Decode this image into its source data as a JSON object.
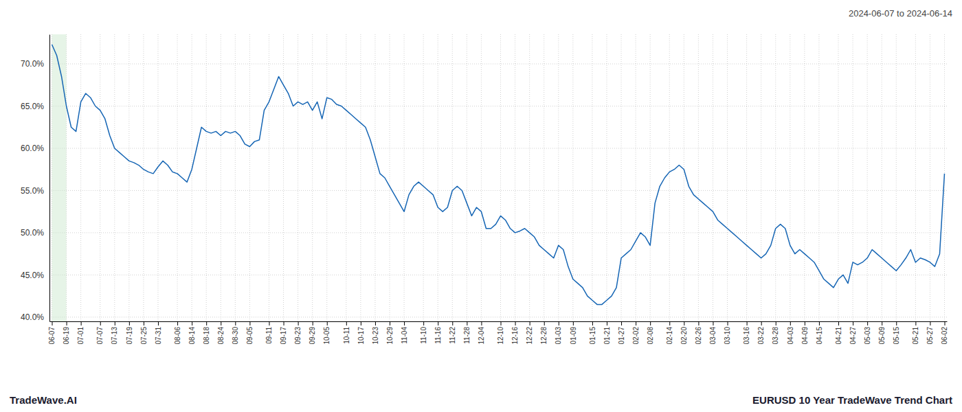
{
  "chart_data": {
    "type": "line",
    "title": "EURUSD 10 Year TradeWave Trend Chart",
    "subtitle": "2024-06-07 to 2024-06-14",
    "annotations": [
      "TradeWave.AI"
    ],
    "color": "#1565b4",
    "grid": true,
    "highlight": {
      "from": "06-07",
      "to": "06-19",
      "color": "#c8e6c9"
    },
    "ylim": [
      39.5,
      73.5
    ],
    "yticks": [
      {
        "value": 40.0,
        "label": "40.0%"
      },
      {
        "value": 45.0,
        "label": "45.0%"
      },
      {
        "value": 50.0,
        "label": "50.0%"
      },
      {
        "value": 55.0,
        "label": "55.0%"
      },
      {
        "value": 60.0,
        "label": "60.0%"
      },
      {
        "value": 65.0,
        "label": "65.0%"
      },
      {
        "value": 70.0,
        "label": "70.0%"
      }
    ],
    "categories": [
      "06-07",
      null,
      null,
      "06-19",
      null,
      null,
      "07-01",
      null,
      null,
      null,
      "07-07",
      null,
      null,
      "07-13",
      null,
      null,
      "07-19",
      null,
      null,
      "07-25",
      null,
      null,
      "07-31",
      null,
      null,
      null,
      "08-06",
      null,
      null,
      "08-14",
      null,
      null,
      "08-18",
      null,
      null,
      "08-24",
      null,
      null,
      "08-30",
      null,
      null,
      "09-05",
      null,
      null,
      null,
      "09-11",
      null,
      null,
      "09-17",
      null,
      null,
      "09-23",
      null,
      null,
      "09-29",
      null,
      null,
      "10-05",
      null,
      null,
      null,
      "10-11",
      null,
      null,
      "10-17",
      null,
      null,
      "10-23",
      null,
      null,
      "10-29",
      null,
      null,
      "11-04",
      null,
      null,
      null,
      "11-10",
      null,
      null,
      "11-16",
      null,
      null,
      "11-22",
      null,
      null,
      "11-28",
      null,
      null,
      "12-04",
      null,
      null,
      null,
      "12-10",
      null,
      null,
      "12-16",
      null,
      null,
      "12-22",
      null,
      null,
      "12-28",
      null,
      null,
      "01-03",
      null,
      null,
      "01-09",
      null,
      null,
      null,
      "01-15",
      null,
      null,
      "01-21",
      null,
      null,
      "01-27",
      null,
      null,
      "02-02",
      null,
      null,
      "02-08",
      null,
      null,
      null,
      "02-14",
      null,
      null,
      "02-20",
      null,
      null,
      "02-26",
      null,
      null,
      "03-04",
      null,
      null,
      "03-10",
      null,
      null,
      null,
      "03-16",
      null,
      null,
      "03-22",
      null,
      null,
      "03-28",
      null,
      null,
      "04-03",
      null,
      null,
      "04-09",
      null,
      null,
      "04-15",
      null,
      null,
      null,
      "04-21",
      null,
      null,
      "04-27",
      null,
      null,
      "05-03",
      null,
      null,
      "05-09",
      null,
      null,
      "05-15",
      null,
      null,
      null,
      "05-21",
      null,
      null,
      "05-27",
      null,
      null,
      "06-02"
    ],
    "values": [
      72.3,
      71.0,
      68.5,
      65.0,
      62.5,
      62.0,
      65.5,
      66.5,
      66.0,
      65.0,
      64.5,
      63.5,
      61.5,
      60.0,
      59.5,
      59.0,
      58.5,
      58.3,
      58.0,
      57.5,
      57.2,
      57.0,
      57.8,
      58.5,
      58.0,
      57.2,
      57.0,
      56.5,
      56.0,
      57.5,
      60.0,
      62.5,
      62.0,
      61.8,
      62.0,
      61.5,
      62.0,
      61.8,
      62.0,
      61.5,
      60.5,
      60.2,
      60.8,
      61.0,
      64.5,
      65.5,
      67.0,
      68.5,
      67.5,
      66.5,
      65.0,
      65.5,
      65.2,
      65.5,
      64.5,
      65.5,
      63.5,
      66.0,
      65.8,
      65.2,
      65.0,
      64.5,
      64.0,
      63.5,
      63.0,
      62.5,
      61.0,
      59.0,
      57.0,
      56.5,
      55.5,
      54.5,
      53.5,
      52.5,
      54.5,
      55.5,
      56.0,
      55.5,
      55.0,
      54.5,
      53.0,
      52.5,
      53.0,
      55.0,
      55.5,
      55.0,
      53.5,
      52.0,
      53.0,
      52.5,
      50.5,
      50.5,
      51.0,
      52.0,
      51.5,
      50.5,
      50.0,
      50.2,
      50.5,
      50.0,
      49.5,
      48.5,
      48.0,
      47.5,
      47.0,
      48.5,
      48.0,
      46.0,
      44.5,
      44.0,
      43.5,
      42.5,
      42.0,
      41.5,
      41.5,
      42.0,
      42.5,
      43.5,
      47.0,
      47.5,
      48.0,
      49.0,
      50.0,
      49.5,
      48.5,
      53.5,
      55.5,
      56.5,
      57.2,
      57.5,
      58.0,
      57.5,
      55.5,
      54.5,
      54.0,
      53.5,
      53.0,
      52.5,
      51.5,
      51.0,
      50.5,
      50.0,
      49.5,
      49.0,
      48.5,
      48.0,
      47.5,
      47.0,
      47.5,
      48.5,
      50.5,
      51.0,
      50.5,
      48.5,
      47.5,
      48.0,
      47.5,
      47.0,
      46.5,
      45.5,
      44.5,
      44.0,
      43.5,
      44.5,
      45.0,
      44.0,
      46.5,
      46.2,
      46.5,
      47.0,
      48.0,
      47.5,
      47.0,
      46.5,
      46.0,
      45.5,
      46.2,
      47.0,
      48.0,
      46.5,
      47.0,
      46.8,
      46.5,
      46.0,
      47.5,
      57.0
    ]
  }
}
